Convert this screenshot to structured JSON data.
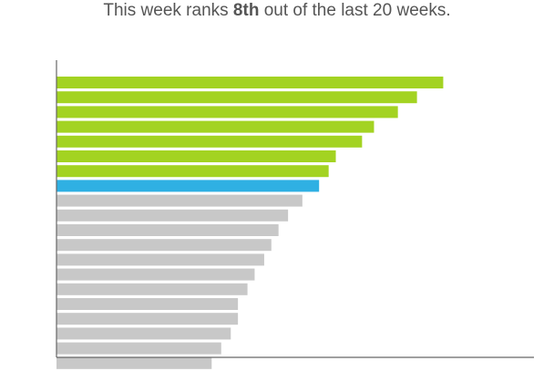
{
  "headline": {
    "prefix": "This week ranks ",
    "rank": "8th",
    "suffix": " out of the last 20 weeks."
  },
  "colors": {
    "above": "#a3d322",
    "current": "#2fb0e3",
    "below": "#c8c8c8",
    "axis": "#666666"
  },
  "chart_data": {
    "type": "bar",
    "orientation": "horizontal",
    "sorted": "descending",
    "highlight_index": 7,
    "grid": false,
    "legend": "none",
    "xlim": [
      0,
      100
    ],
    "values": [
      81,
      75.5,
      71.5,
      66.5,
      64,
      58.5,
      57,
      55,
      51.5,
      48.5,
      46.5,
      45,
      43.5,
      41.5,
      40,
      38,
      38,
      36.5,
      34.5,
      32.5
    ],
    "title": "",
    "xlabel": "",
    "ylabel": ""
  }
}
